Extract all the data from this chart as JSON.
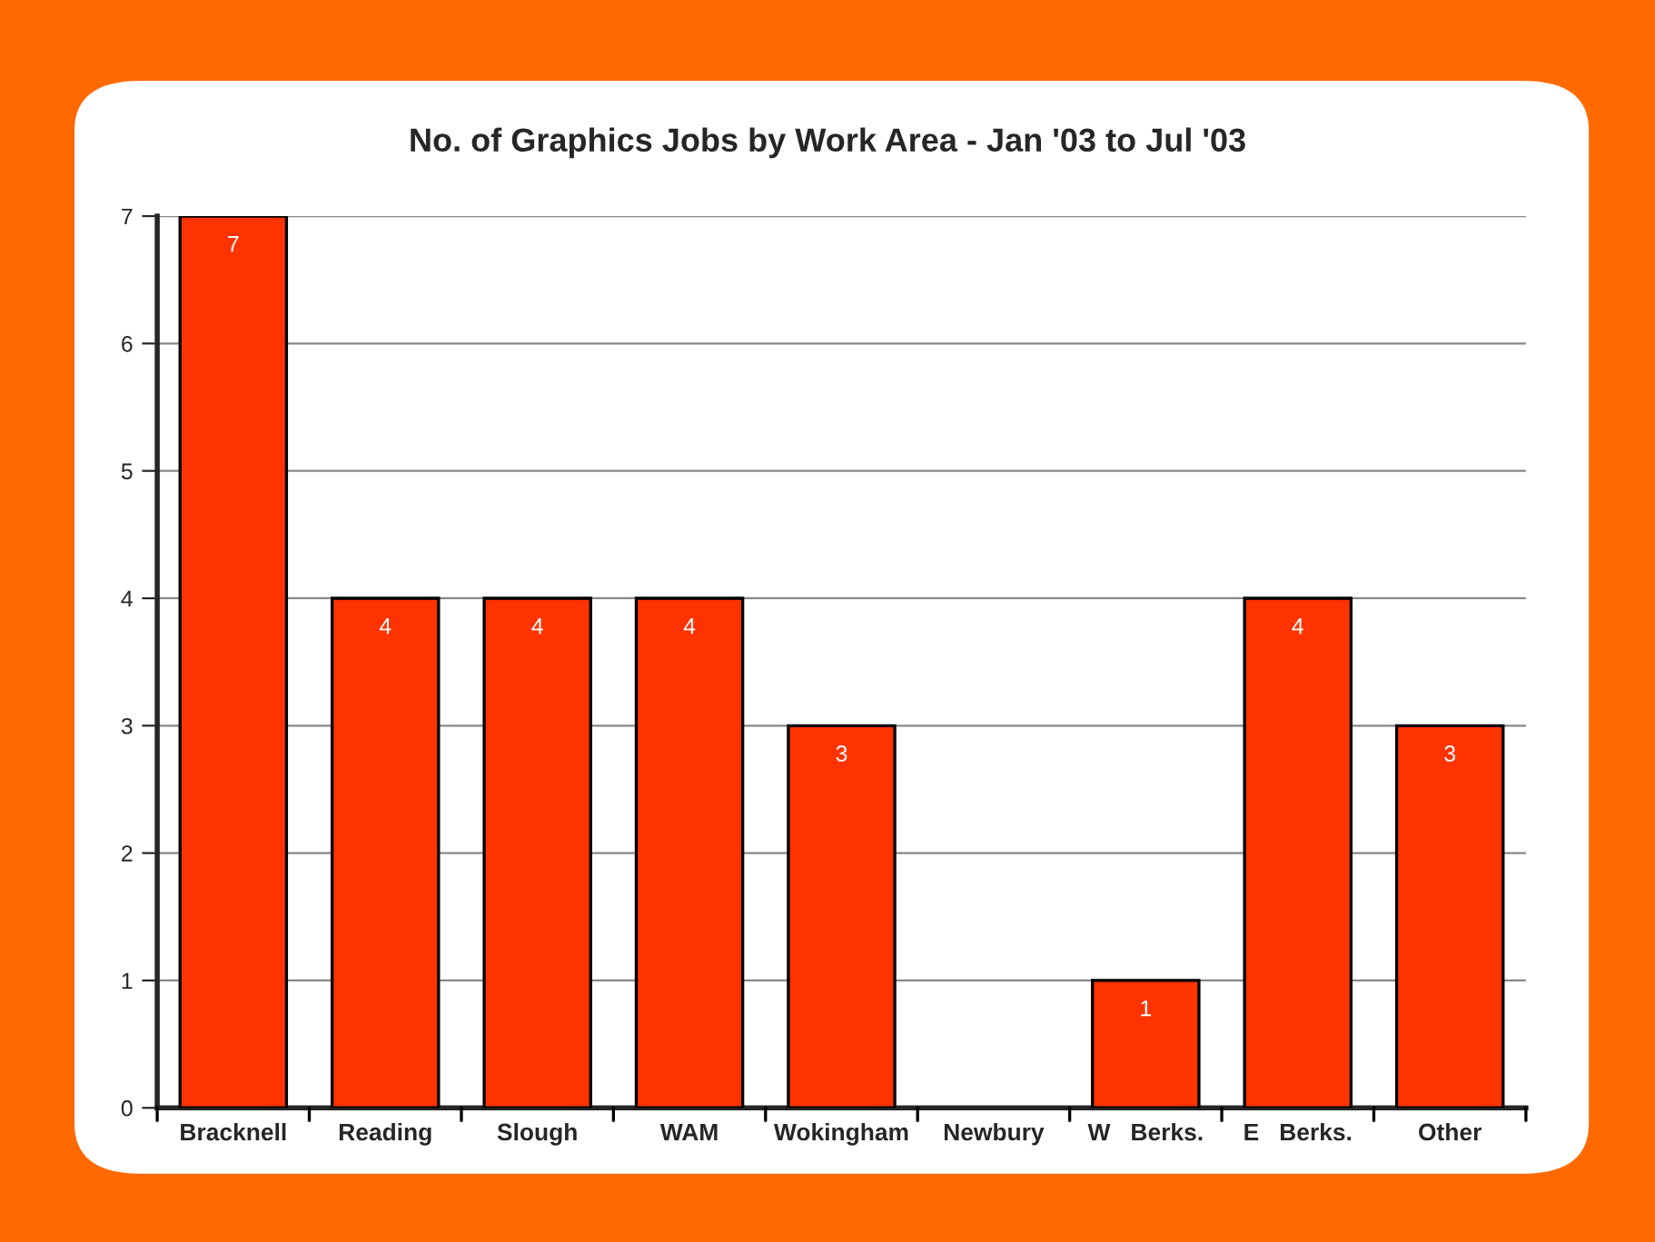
{
  "chart_data": {
    "type": "bar",
    "title": "No. of Graphics Jobs by Work Area - Jan '03 to Jul '03",
    "categories": [
      "Bracknell",
      "Reading",
      "Slough",
      "WAM",
      "Wokingham",
      "Newbury",
      "W   Berks.",
      "E   Berks.",
      "Other"
    ],
    "values": [
      7,
      4,
      4,
      4,
      3,
      0,
      1,
      4,
      3
    ],
    "value_labels": [
      "7",
      "4",
      "4",
      "4",
      "3",
      null,
      "1",
      "4",
      "3"
    ],
    "color": "#ff3300",
    "ylim": [
      0,
      7
    ],
    "yticks": [
      0,
      1,
      2,
      3,
      4,
      5,
      6,
      7
    ],
    "grid": "y"
  }
}
